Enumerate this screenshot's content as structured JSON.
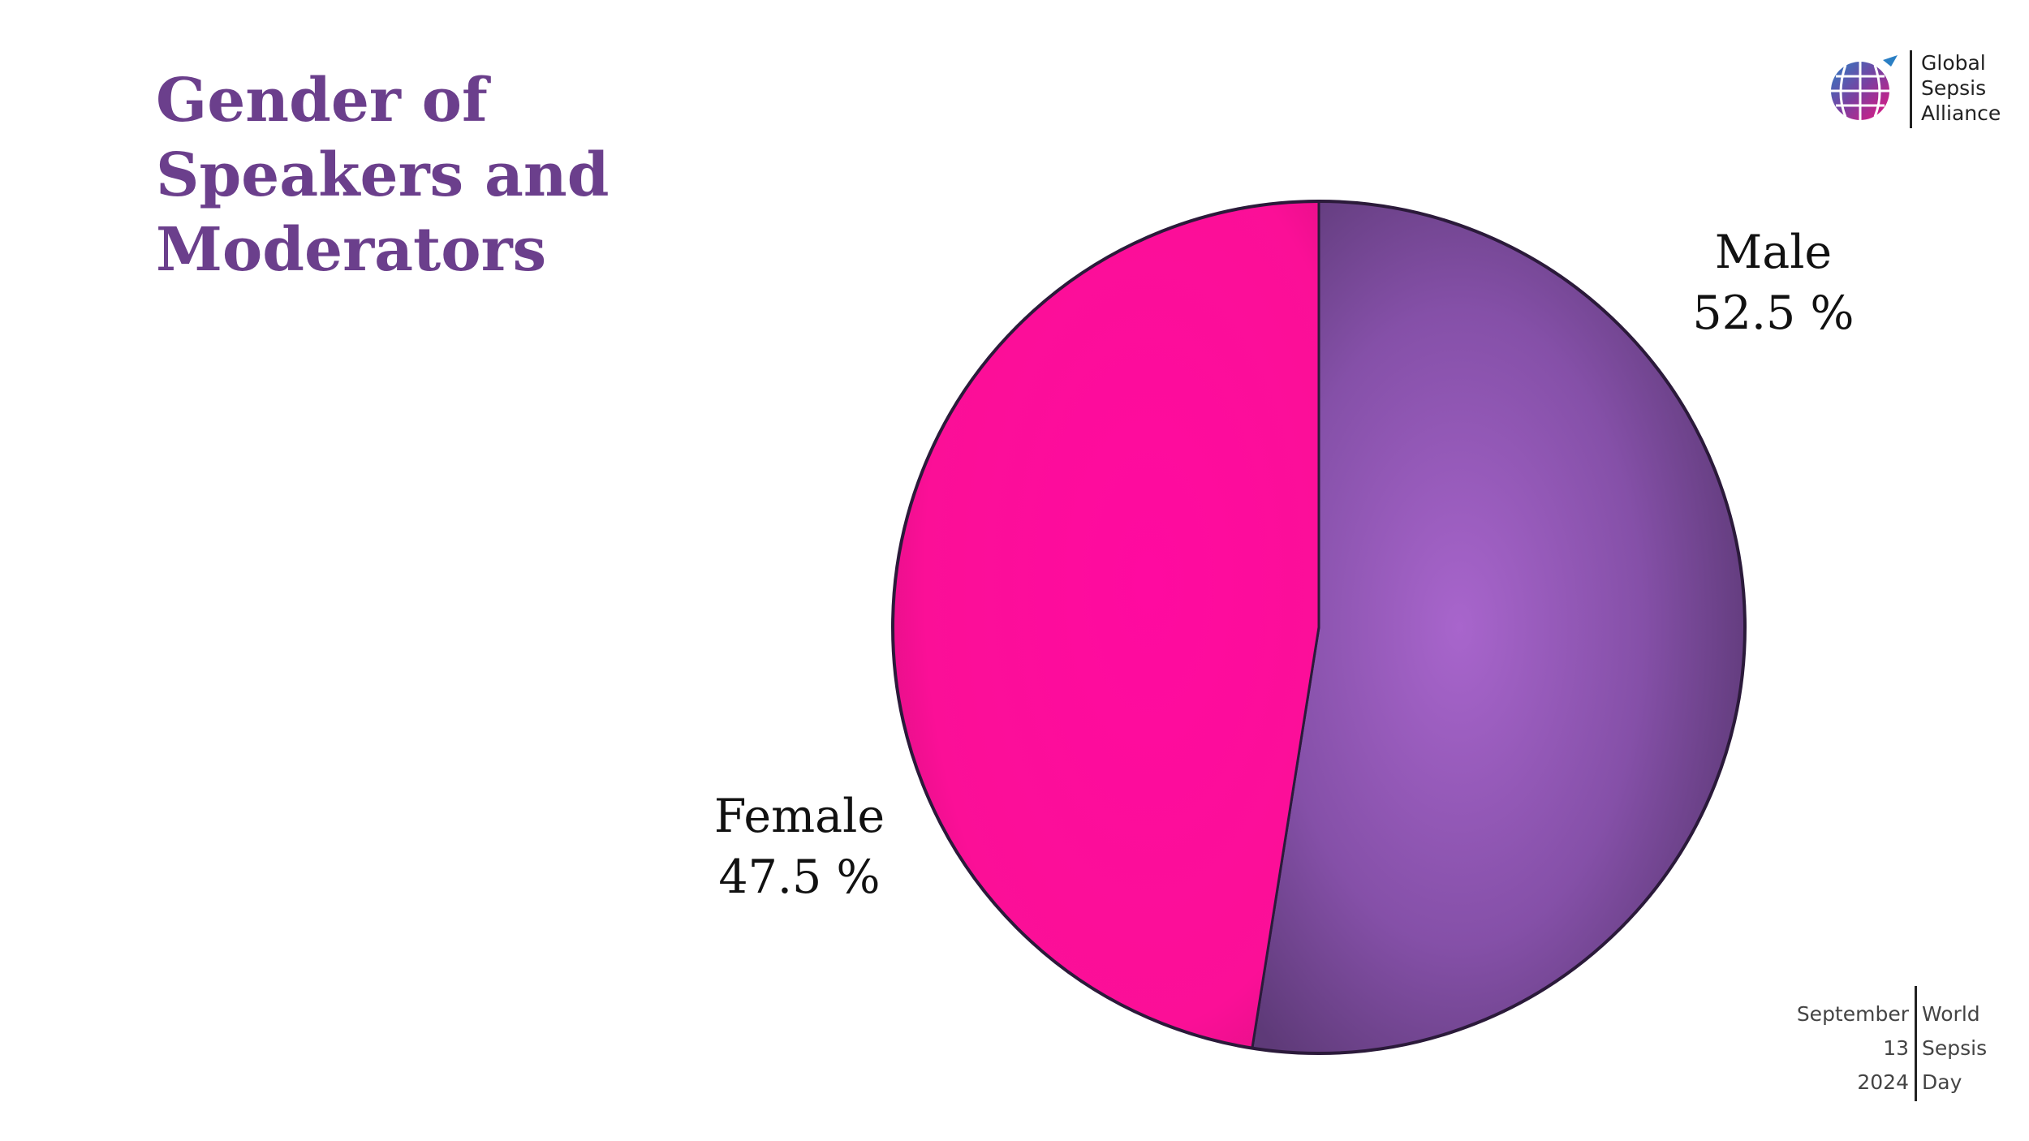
{
  "title": {
    "lines": [
      "Gender of",
      "Speakers and",
      "Moderators"
    ]
  },
  "logo": {
    "icon": "globe-icon",
    "lines": [
      "Global",
      "Sepsis",
      "Alliance"
    ]
  },
  "event": {
    "date_lines": [
      "September",
      "13",
      "2024"
    ],
    "name_lines": [
      "World",
      "Sepsis",
      "Day"
    ]
  },
  "chart_data": {
    "type": "pie",
    "title": "Gender of Speakers and Moderators",
    "categories": [
      "Male",
      "Female"
    ],
    "values": [
      52.5,
      47.5
    ],
    "value_labels": [
      "52.5 %",
      "47.5 %"
    ],
    "colors": [
      "#8a52b0",
      "#ff1aa0"
    ],
    "legend": "none"
  }
}
